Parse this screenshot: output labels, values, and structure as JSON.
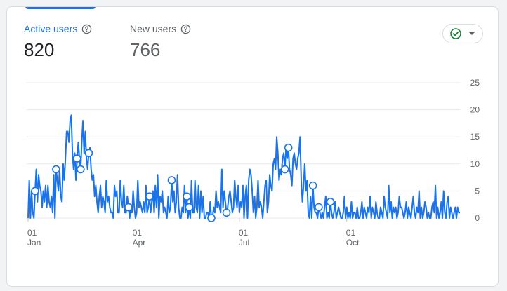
{
  "metrics": {
    "active": {
      "label": "Active users",
      "value": "820"
    },
    "new": {
      "label": "New users",
      "value": "766"
    }
  },
  "status_icon": "check-circle-icon",
  "colors": {
    "accent": "#1a73e8",
    "status_green": "#188038",
    "grid": "#e8eaed",
    "text_secondary": "#5f6368"
  },
  "chart_data": {
    "type": "line",
    "title": "",
    "xlabel": "",
    "ylabel": "",
    "ylim": [
      0,
      25
    ],
    "y_ticks": [
      "25",
      "20",
      "15",
      "10",
      "5",
      "0"
    ],
    "x_ticks": [
      {
        "day": "01",
        "month": "Jan"
      },
      {
        "day": "01",
        "month": "Apr"
      },
      {
        "day": "01",
        "month": "Jul"
      },
      {
        "day": "01",
        "month": "Oct"
      }
    ],
    "series": [
      {
        "values": [
          0,
          7,
          0,
          5,
          1,
          0,
          5,
          9,
          3,
          8,
          6,
          5,
          2,
          5,
          3,
          6,
          2,
          6,
          3,
          2,
          4,
          1,
          8,
          0,
          9,
          7,
          5,
          9,
          4,
          3,
          10,
          7,
          11,
          16,
          16,
          14,
          18,
          19,
          12,
          9,
          12,
          7,
          11,
          14,
          11,
          9,
          14,
          18,
          12,
          16,
          11,
          9,
          12,
          13,
          9,
          7,
          8,
          4,
          6,
          3,
          1,
          4,
          6,
          2,
          4,
          3,
          1,
          7,
          3,
          4,
          2,
          1,
          1,
          0,
          6,
          4,
          5,
          1,
          1,
          7,
          3,
          2,
          6,
          1,
          1,
          4,
          2,
          0,
          2,
          1,
          5,
          2,
          0,
          1,
          7,
          2,
          3,
          2,
          1,
          3,
          1,
          6,
          1,
          2,
          4,
          1,
          3,
          5,
          1,
          6,
          2,
          8,
          0,
          4,
          3,
          5,
          1,
          2,
          1,
          0,
          4,
          1,
          2,
          7,
          3,
          5,
          1,
          3,
          8,
          2,
          0,
          0,
          2,
          1,
          6,
          1,
          4,
          0,
          2,
          0,
          7,
          1,
          1,
          7,
          2,
          1,
          6,
          0,
          5,
          1,
          4,
          0,
          0,
          1,
          1,
          0,
          3,
          0,
          0,
          2,
          1,
          5,
          2,
          3,
          2,
          1,
          9,
          2,
          5,
          3,
          1,
          2,
          4,
          5,
          3,
          1,
          2,
          7,
          4,
          2,
          6,
          1,
          3,
          2,
          6,
          0,
          4,
          6,
          0,
          7,
          9,
          8,
          5,
          1,
          4,
          0,
          2,
          7,
          2,
          3,
          2,
          0,
          3,
          6,
          7,
          1,
          3,
          8,
          6,
          5,
          10,
          11,
          9,
          15,
          12,
          7,
          9,
          8,
          11,
          12,
          9,
          13,
          11,
          13,
          9,
          8,
          6,
          11,
          12,
          10,
          9,
          11,
          12,
          15,
          7,
          3,
          6,
          10,
          5,
          7,
          1,
          0,
          4,
          0,
          6,
          2,
          1,
          1,
          0,
          2,
          1,
          0,
          1,
          0,
          2,
          4,
          0,
          1,
          0,
          3,
          1,
          0,
          1,
          3,
          0,
          1,
          2,
          1,
          0,
          0,
          1,
          4,
          0,
          2,
          0,
          1,
          0,
          3,
          0,
          1,
          1,
          0,
          2,
          0,
          0,
          1,
          3,
          0,
          2,
          1,
          0,
          2,
          1,
          4,
          0,
          2,
          1,
          0,
          3,
          1,
          0,
          0,
          2,
          1,
          0,
          4,
          2,
          1,
          0,
          6,
          1,
          3,
          0,
          2,
          1,
          2,
          0,
          1,
          4,
          2,
          2,
          1,
          0,
          1,
          3,
          0,
          2,
          1,
          0,
          2,
          4,
          1,
          0,
          2,
          1,
          5,
          0,
          2,
          0,
          1,
          3,
          2,
          0,
          1,
          0,
          0,
          2,
          3,
          1,
          6,
          0,
          2,
          0,
          1,
          3,
          0,
          5,
          1,
          0,
          3,
          4,
          0,
          2,
          1,
          0,
          1,
          2,
          0,
          2,
          1,
          1
        ],
        "markers": [
          6,
          24,
          42,
          45,
          52,
          86,
          104,
          123,
          136,
          138,
          157,
          170,
          220,
          223,
          244,
          249,
          259
        ]
      }
    ],
    "grid": true
  }
}
